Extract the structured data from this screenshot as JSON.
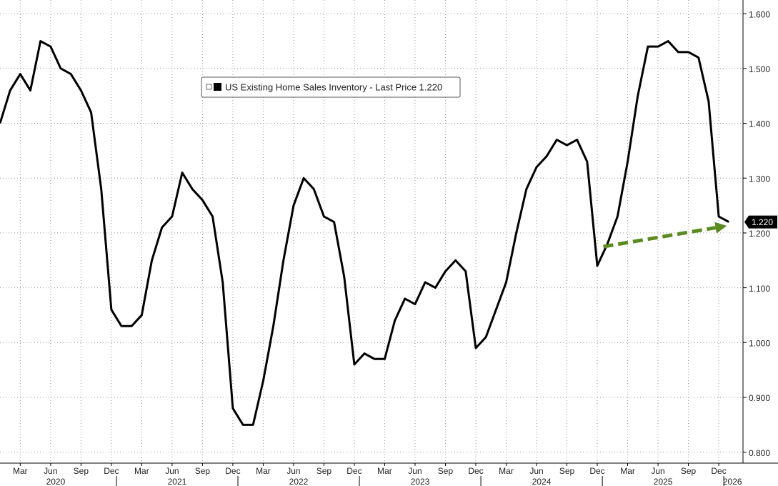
{
  "chart_data": {
    "type": "line",
    "categories": [
      null,
      null,
      "Mar",
      null,
      null,
      "Jun",
      null,
      null,
      "Sep",
      null,
      null,
      "Dec",
      null,
      null,
      "Mar",
      null,
      null,
      "Jun",
      null,
      null,
      "Sep",
      null,
      null,
      "Dec",
      null,
      null,
      "Mar",
      null,
      null,
      "Jun",
      null,
      null,
      "Sep",
      null,
      null,
      "Dec",
      null,
      null,
      "Mar",
      null,
      null,
      "Jun",
      null,
      null,
      "Sep",
      null,
      null,
      "Dec",
      null,
      null,
      "Mar",
      null,
      null,
      "Jun",
      null,
      null,
      "Sep",
      null,
      null,
      "Dec",
      null,
      null,
      "Mar",
      null,
      null,
      "Jun",
      null,
      null,
      "Sep",
      null,
      null,
      "Dec",
      null
    ],
    "years": [
      "2020",
      "2021",
      "2022",
      "2023",
      "2024",
      "2025",
      "2026"
    ],
    "series": [
      {
        "name": "US Existing Home Sales Inventory - Last Price 1.220",
        "color": "#000000",
        "values": [
          1.4,
          1.46,
          1.49,
          1.46,
          1.55,
          1.54,
          1.5,
          1.49,
          1.46,
          1.42,
          1.28,
          1.06,
          1.03,
          1.03,
          1.05,
          1.15,
          1.21,
          1.23,
          1.31,
          1.28,
          1.26,
          1.23,
          1.11,
          0.88,
          0.85,
          0.85,
          0.93,
          1.03,
          1.15,
          1.25,
          1.3,
          1.28,
          1.23,
          1.22,
          1.12,
          0.96,
          0.98,
          0.97,
          0.97,
          1.04,
          1.08,
          1.07,
          1.11,
          1.1,
          1.13,
          1.15,
          1.13,
          0.99,
          1.01,
          1.06,
          1.11,
          1.2,
          1.28,
          1.32,
          1.34,
          1.37,
          1.36,
          1.37,
          1.33,
          1.14,
          1.18,
          1.23,
          1.33,
          1.45,
          1.54,
          1.54,
          1.55,
          1.53,
          1.53,
          1.52,
          1.44,
          1.23,
          1.22
        ]
      }
    ],
    "last_value": {
      "value": 1.22,
      "label": "1.220"
    },
    "trend_arrow": {
      "color": "#5b8a1e",
      "x": [
        59.6,
        71.8
      ],
      "y": [
        1.175,
        1.213
      ]
    },
    "ylim": [
      0.78,
      1.625
    ],
    "yticks": [
      {
        "value": 0.8,
        "label": "0.800"
      },
      {
        "value": 0.9,
        "label": "0.900"
      },
      {
        "value": 1.0,
        "label": "1.000"
      },
      {
        "value": 1.1,
        "label": "1.100"
      },
      {
        "value": 1.2,
        "label": "1.200"
      },
      {
        "value": 1.3,
        "label": "1.300"
      },
      {
        "value": 1.4,
        "label": "1.400"
      },
      {
        "value": 1.5,
        "label": "1.500"
      },
      {
        "value": 1.6,
        "label": "1.600"
      }
    ],
    "grid": true
  }
}
